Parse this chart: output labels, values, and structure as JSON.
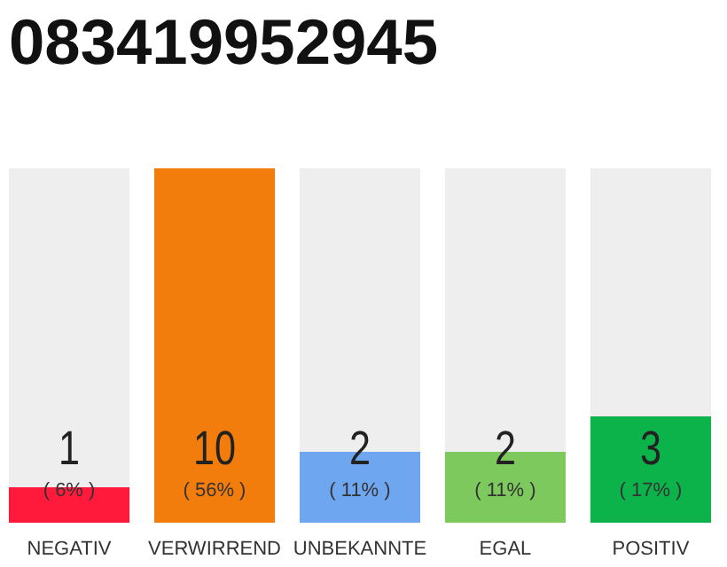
{
  "chart_data": {
    "type": "bar",
    "title": "083419952945",
    "categories": [
      "NEGATIV",
      "VERWIRREND",
      "UNBEKANNTE",
      "EGAL",
      "POSITIV"
    ],
    "values": [
      1,
      10,
      2,
      2,
      3
    ],
    "colors": [
      "#ff1a3c",
      "#f27d0c",
      "#6ea6f0",
      "#7dc95e",
      "#0cb24a"
    ],
    "ylim": [
      0,
      10
    ],
    "data_labels": true,
    "tick_labels": "x",
    "annotations": [
      "( 6% )",
      "( 56% )",
      "( 11% )",
      "( 11% )",
      "( 17% )"
    ]
  }
}
